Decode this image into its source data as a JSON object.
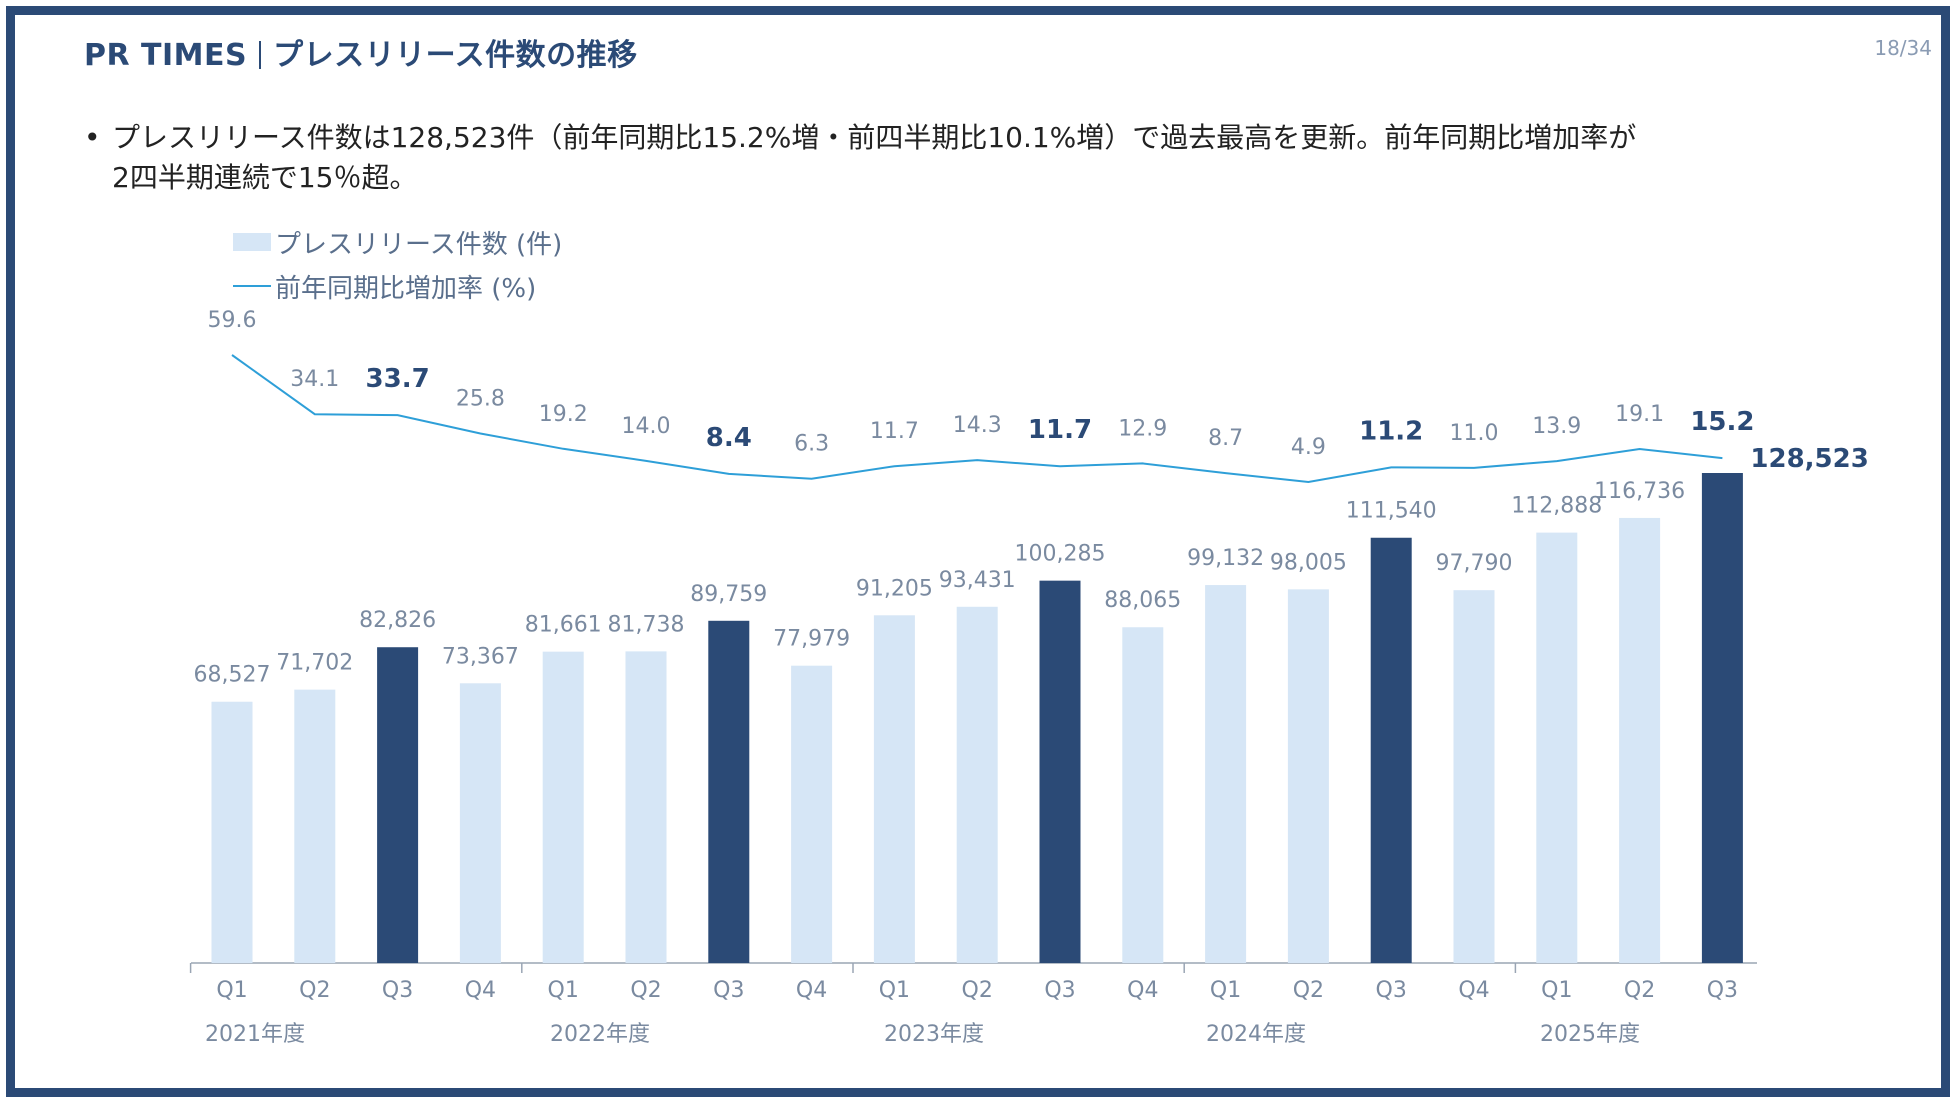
{
  "page": {
    "brand": "PR TIMES",
    "title": "プレスリリース件数の推移",
    "page_number": "18/34",
    "bullet_line1": "プレスリリース件数は128,523件（前年同期比15.2%増・前四半期比10.1%増）で過去最高を更新。前年同期比増加率が",
    "bullet_line2": "2四半期連続で15％超。",
    "bullet_symbol": "•"
  },
  "colors": {
    "frame": "#2b4a76",
    "bar_light": "#d6e6f6",
    "bar_dark": "#2b4a76",
    "line": "#2e9fd8",
    "label_gray": "#7a8aa0",
    "label_dark": "#2b4a76"
  },
  "chart_data": {
    "type": "bar",
    "legend": [
      {
        "name": "プレスリリース件数 (件)",
        "kind": "bar"
      },
      {
        "name": "前年同期比増加率 (%)",
        "kind": "line"
      }
    ],
    "categories": [
      "Q1",
      "Q2",
      "Q3",
      "Q4",
      "Q1",
      "Q2",
      "Q3",
      "Q4",
      "Q1",
      "Q2",
      "Q3",
      "Q4",
      "Q1",
      "Q2",
      "Q3",
      "Q4",
      "Q1",
      "Q2",
      "Q3"
    ],
    "groups": [
      {
        "label": "2021年度",
        "quarters": 4
      },
      {
        "label": "2022年度",
        "quarters": 4
      },
      {
        "label": "2023年度",
        "quarters": 4
      },
      {
        "label": "2024年度",
        "quarters": 4
      },
      {
        "label": "2025年度",
        "quarters": 3
      }
    ],
    "series": [
      {
        "name": "プレスリリース件数 (件)",
        "type": "bar",
        "values": [
          68527,
          71702,
          82826,
          73367,
          81661,
          81738,
          89759,
          77979,
          91205,
          93431,
          100285,
          88065,
          99132,
          98005,
          111540,
          97790,
          112888,
          116736,
          128523
        ],
        "labels": [
          "68,527",
          "71,702",
          "82,826",
          "73,367",
          "81,661",
          "81,738",
          "89,759",
          "77,979",
          "91,205",
          "93,431",
          "100,285",
          "88,065",
          "99,132",
          "98,005",
          "111,540",
          "97,790",
          "112,888",
          "116,736",
          "128,523"
        ]
      },
      {
        "name": "前年同期比増加率 (%)",
        "type": "line",
        "values": [
          59.6,
          34.1,
          33.7,
          25.8,
          19.2,
          14.0,
          8.4,
          6.3,
          11.7,
          14.3,
          11.7,
          12.9,
          8.7,
          4.9,
          11.2,
          11.0,
          13.9,
          19.1,
          15.2
        ],
        "labels": [
          "59.6",
          "34.1",
          "33.7",
          "25.8",
          "19.2",
          "14.0",
          "8.4",
          "6.3",
          "11.7",
          "14.3",
          "11.7",
          "12.9",
          "8.7",
          "4.9",
          "11.2",
          "11.0",
          "13.9",
          "19.1",
          "15.2"
        ]
      }
    ],
    "highlighted_indices": [
      2,
      6,
      10,
      14,
      18
    ],
    "bar_ylim": [
      0,
      128523
    ],
    "line_ylim": [
      4.9,
      59.6
    ]
  }
}
